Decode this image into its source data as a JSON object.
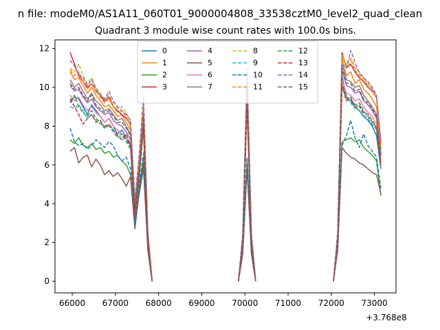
{
  "figure": {
    "suptitle": "n file: modeM0/AS1A11_060T01_9000004808_33538cztM0_level2_quad_clean"
  },
  "chart_data": {
    "type": "line",
    "title": "Quadrant 3 module wise count rates with 100.0s bins.",
    "xlabel": "",
    "ylabel": "",
    "x_offset_label": "+3.768e8",
    "xlim": [
      65600,
      73500
    ],
    "ylim": [
      -0.6,
      12.45
    ],
    "x_ticks": [
      66000,
      67000,
      68000,
      69000,
      70000,
      71000,
      72000,
      73000
    ],
    "x_tick_labels": [
      "66000",
      "67000",
      "68000",
      "69000",
      "70000",
      "71000",
      "72000",
      "73000"
    ],
    "y_ticks": [
      0,
      2,
      4,
      6,
      8,
      10,
      12
    ],
    "y_tick_labels": [
      "0",
      "2",
      "4",
      "6",
      "8",
      "10",
      "12"
    ],
    "grid": false,
    "legend": {
      "placement": "top-center",
      "columns": 4
    },
    "segment_x": [
      [
        65950,
        66050,
        66150,
        66250,
        66350,
        66450,
        66550,
        66650,
        66750,
        66850,
        66950,
        67050,
        67150,
        67250,
        67350,
        67450,
        67550,
        67650,
        67750,
        67850
      ],
      [
        69850,
        69950,
        70050,
        70150,
        70250
      ],
      [
        72050,
        72150,
        72250,
        72350,
        72450,
        72550,
        72650,
        72750,
        72850,
        72950,
        73050,
        73150
      ]
    ],
    "series": [
      {
        "name": "0",
        "color": "#1f77b4",
        "dash": false,
        "segments": [
          [
            9.2,
            9.5,
            9.4,
            9.0,
            8.6,
            9.1,
            8.8,
            8.5,
            8.2,
            8.4,
            8.0,
            7.6,
            7.8,
            7.4,
            7.0,
            2.8,
            4.5,
            5.8,
            1.8,
            0
          ],
          [
            0,
            1.6,
            6.0,
            1.5,
            0
          ],
          [
            0,
            1.8,
            10.6,
            9.5,
            9.3,
            9.0,
            8.8,
            8.5,
            8.3,
            8.0,
            7.5,
            5.8
          ]
        ]
      },
      {
        "name": "1",
        "color": "#ff7f0e",
        "dash": false,
        "segments": [
          [
            10.8,
            10.4,
            10.5,
            10.1,
            9.7,
            10.0,
            9.6,
            9.3,
            9.0,
            9.1,
            8.8,
            8.5,
            8.6,
            8.2,
            7.8,
            4.0,
            6.0,
            8.5,
            2.4,
            0
          ],
          [
            0,
            2.2,
            10.2,
            2.2,
            0
          ],
          [
            0,
            2.3,
            11.5,
            10.6,
            10.8,
            10.2,
            10.4,
            9.9,
            9.7,
            9.4,
            9.0,
            6.8
          ]
        ]
      },
      {
        "name": "2",
        "color": "#2ca02c",
        "dash": false,
        "segments": [
          [
            7.3,
            7.1,
            7.4,
            7.0,
            6.9,
            7.1,
            6.8,
            6.9,
            6.6,
            6.7,
            6.4,
            6.5,
            6.2,
            6.0,
            5.5,
            2.8,
            4.8,
            6.3,
            1.7,
            0
          ],
          [
            0,
            1.5,
            6.2,
            1.5,
            0
          ],
          [
            0,
            1.7,
            7.2,
            7.3,
            7.4,
            7.2,
            7.3,
            6.9,
            6.7,
            6.5,
            6.2,
            4.4
          ]
        ]
      },
      {
        "name": "3",
        "color": "#d62728",
        "dash": false,
        "segments": [
          [
            11.8,
            11.2,
            10.6,
            10.3,
            10.0,
            10.2,
            9.8,
            9.6,
            9.3,
            9.5,
            9.0,
            8.8,
            8.6,
            8.4,
            8.1,
            4.0,
            6.2,
            8.8,
            2.5,
            0
          ],
          [
            0,
            2.3,
            10.5,
            2.3,
            0
          ],
          [
            0,
            2.4,
            11.8,
            11.0,
            11.2,
            10.8,
            10.5,
            10.3,
            10.0,
            9.8,
            9.5,
            7.1
          ]
        ]
      },
      {
        "name": "4",
        "color": "#9467bd",
        "dash": false,
        "segments": [
          [
            10.1,
            9.8,
            9.9,
            9.5,
            9.2,
            9.4,
            9.0,
            8.8,
            8.6,
            8.7,
            8.3,
            8.1,
            8.0,
            7.7,
            7.3,
            3.7,
            5.6,
            8.6,
            2.2,
            0
          ],
          [
            0,
            2.1,
            9.8,
            2.1,
            0
          ],
          [
            0,
            2.2,
            10.9,
            10.1,
            10.0,
            9.7,
            9.8,
            9.3,
            9.1,
            8.8,
            8.4,
            6.4
          ]
        ]
      },
      {
        "name": "5",
        "color": "#8c564b",
        "dash": false,
        "segments": [
          [
            6.7,
            6.9,
            6.1,
            6.4,
            6.5,
            5.9,
            6.3,
            6.0,
            5.5,
            5.7,
            5.4,
            5.6,
            5.3,
            4.9,
            5.4,
            2.7,
            4.6,
            6.0,
            1.6,
            0
          ],
          [
            0,
            1.4,
            5.8,
            1.4,
            0
          ],
          [
            0,
            1.6,
            6.9,
            6.6,
            6.4,
            6.3,
            6.1,
            6.0,
            5.8,
            5.6,
            5.5,
            4.5
          ]
        ]
      },
      {
        "name": "6",
        "color": "#e377c2",
        "dash": false,
        "segments": [
          [
            9.6,
            9.3,
            9.5,
            9.1,
            8.8,
            9.0,
            8.7,
            8.5,
            8.2,
            8.4,
            8.0,
            7.8,
            7.6,
            7.4,
            7.1,
            3.5,
            5.4,
            8.2,
            2.1,
            0
          ],
          [
            0,
            2.0,
            9.4,
            2.0,
            0
          ],
          [
            0,
            2.1,
            10.4,
            9.7,
            9.6,
            9.3,
            9.4,
            9.0,
            8.7,
            8.5,
            8.1,
            6.2
          ]
        ]
      },
      {
        "name": "7",
        "color": "#7f7f7f",
        "dash": false,
        "segments": [
          [
            10.4,
            10.0,
            10.2,
            9.8,
            9.4,
            9.7,
            9.3,
            9.1,
            8.8,
            8.9,
            8.6,
            8.3,
            8.4,
            8.0,
            7.6,
            3.8,
            5.8,
            8.7,
            2.3,
            0
          ],
          [
            0,
            2.2,
            10.0,
            2.2,
            0
          ],
          [
            0,
            2.3,
            11.2,
            10.4,
            10.3,
            10.0,
            10.1,
            9.6,
            9.3,
            9.0,
            8.6,
            6.6
          ]
        ]
      },
      {
        "name": "8",
        "color": "#bcbd22",
        "dash": true,
        "segments": [
          [
            11.0,
            10.8,
            11.2,
            10.6,
            10.2,
            10.5,
            10.0,
            9.7,
            9.4,
            9.6,
            9.2,
            8.9,
            9.0,
            8.7,
            8.2,
            4.2,
            6.3,
            9.2,
            2.5,
            0
          ],
          [
            0,
            2.4,
            10.8,
            2.4,
            0
          ],
          [
            0,
            2.5,
            11.7,
            11.0,
            11.4,
            10.9,
            10.6,
            10.4,
            10.1,
            9.9,
            9.4,
            7.0
          ]
        ]
      },
      {
        "name": "9",
        "color": "#17becf",
        "dash": true,
        "segments": [
          [
            9.0,
            8.9,
            9.1,
            8.8,
            8.4,
            8.6,
            8.3,
            8.1,
            7.9,
            8.0,
            7.7,
            7.4,
            7.5,
            7.2,
            6.8,
            3.3,
            5.2,
            7.9,
            2.0,
            0
          ],
          [
            0,
            1.9,
            9.1,
            1.9,
            0
          ],
          [
            0,
            2.0,
            10.0,
            9.4,
            9.2,
            8.9,
            9.0,
            8.6,
            8.4,
            8.1,
            7.8,
            6.0
          ]
        ]
      },
      {
        "name": "10",
        "color": "#1f77b4",
        "dash": true,
        "segments": [
          [
            7.9,
            7.2,
            7.0,
            7.1,
            6.8,
            7.0,
            7.3,
            7.1,
            6.9,
            7.2,
            7.0,
            6.5,
            6.2,
            6.4,
            5.8,
            3.0,
            4.9,
            6.6,
            1.8,
            0
          ],
          [
            0,
            1.6,
            6.4,
            1.6,
            0
          ],
          [
            0,
            1.8,
            7.0,
            7.5,
            8.3,
            7.4,
            6.9,
            7.6,
            7.0,
            6.7,
            6.4,
            4.8
          ]
        ]
      },
      {
        "name": "11",
        "color": "#ff7f0e",
        "dash": true,
        "segments": [
          [
            10.9,
            10.6,
            10.8,
            10.3,
            9.9,
            10.2,
            9.8,
            9.5,
            9.2,
            9.4,
            9.0,
            8.7,
            8.8,
            8.5,
            8.0,
            4.1,
            6.1,
            9.0,
            2.4,
            0
          ],
          [
            0,
            2.3,
            10.6,
            2.3,
            0
          ],
          [
            0,
            2.4,
            11.6,
            11.2,
            11.5,
            11.0,
            10.8,
            10.5,
            10.2,
            9.9,
            9.5,
            7.0
          ]
        ]
      },
      {
        "name": "12",
        "color": "#2ca02c",
        "dash": true,
        "segments": [
          [
            9.3,
            9.6,
            9.0,
            8.7,
            8.5,
            8.8,
            8.4,
            8.2,
            8.0,
            8.1,
            7.8,
            7.5,
            7.6,
            7.3,
            6.9,
            3.4,
            5.3,
            8.0,
            2.0,
            0
          ],
          [
            0,
            1.9,
            9.2,
            1.9,
            0
          ],
          [
            0,
            2.0,
            10.2,
            9.5,
            9.4,
            9.1,
            9.2,
            8.8,
            8.5,
            8.2,
            7.9,
            6.1
          ]
        ]
      },
      {
        "name": "13",
        "color": "#d62728",
        "dash": true,
        "segments": [
          [
            9.4,
            9.0,
            8.6,
            8.1,
            8.4,
            8.6,
            8.2,
            8.3,
            7.9,
            8.1,
            7.8,
            7.5,
            7.3,
            7.6,
            7.0,
            3.4,
            5.5,
            7.9,
            2.0,
            0
          ],
          [
            0,
            1.9,
            9.0,
            1.9,
            0
          ],
          [
            0,
            2.0,
            10.1,
            9.3,
            9.5,
            9.0,
            9.1,
            8.7,
            8.6,
            8.3,
            7.9,
            6.0
          ]
        ]
      },
      {
        "name": "14",
        "color": "#9467bd",
        "dash": true,
        "segments": [
          [
            11.4,
            11.1,
            10.7,
            10.5,
            10.1,
            10.4,
            9.9,
            9.6,
            9.4,
            9.8,
            9.3,
            9.0,
            8.8,
            8.6,
            8.3,
            4.2,
            6.5,
            9.6,
            2.6,
            0
          ],
          [
            0,
            2.5,
            11.0,
            2.5,
            0
          ],
          [
            0,
            2.6,
            11.2,
            11.0,
            11.9,
            11.3,
            10.7,
            10.5,
            10.3,
            10.0,
            9.6,
            7.2
          ]
        ]
      },
      {
        "name": "15",
        "color": "#8c564b",
        "dash": true,
        "segments": [
          [
            10.2,
            9.9,
            10.0,
            9.6,
            9.3,
            9.6,
            9.1,
            8.9,
            8.7,
            8.8,
            8.5,
            8.2,
            8.2,
            7.9,
            7.5,
            3.7,
            5.7,
            8.5,
            2.2,
            0
          ],
          [
            0,
            2.1,
            9.9,
            2.1,
            0
          ],
          [
            0,
            2.2,
            11.0,
            10.2,
            10.2,
            9.8,
            9.9,
            9.4,
            9.2,
            8.9,
            8.5,
            6.5
          ]
        ]
      }
    ]
  }
}
